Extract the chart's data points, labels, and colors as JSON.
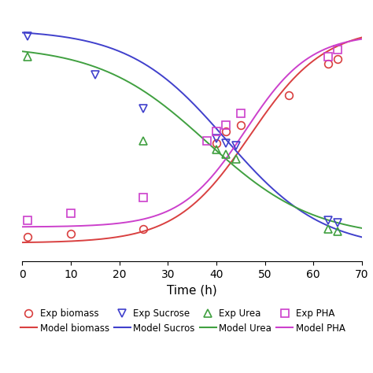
{
  "xlabel": "Time (h)",
  "xlim": [
    0,
    70
  ],
  "xticks": [
    0,
    10,
    20,
    30,
    40,
    50,
    60,
    70
  ],
  "biomass_exp_x": [
    1,
    10,
    25,
    40,
    42,
    45,
    55,
    63,
    65
  ],
  "biomass_exp_y": [
    0.055,
    0.07,
    0.09,
    0.47,
    0.52,
    0.55,
    0.68,
    0.82,
    0.84
  ],
  "sucrose_exp_x": [
    1,
    15,
    25,
    40,
    42,
    44,
    63,
    65
  ],
  "sucrose_exp_y": [
    0.94,
    0.77,
    0.62,
    0.49,
    0.47,
    0.46,
    0.13,
    0.12
  ],
  "urea_exp_x": [
    1,
    25,
    40,
    42,
    44,
    63,
    65
  ],
  "urea_exp_y": [
    0.85,
    0.48,
    0.44,
    0.42,
    0.4,
    0.09,
    0.08
  ],
  "pha_exp_x": [
    1,
    10,
    25,
    38,
    40,
    42,
    45,
    63,
    65
  ],
  "pha_exp_y": [
    0.13,
    0.16,
    0.23,
    0.48,
    0.52,
    0.55,
    0.6,
    0.85,
    0.88
  ],
  "model_biomass_color": "#d94040",
  "model_sucrose_color": "#4040cc",
  "model_urea_color": "#40a040",
  "model_pha_color": "#cc40cc",
  "exp_biomass_color": "#d94040",
  "exp_sucrose_color": "#4040cc",
  "exp_urea_color": "#40a040",
  "exp_pha_color": "#cc40cc",
  "background_color": "#ffffff",
  "legend_row1": [
    "Exp biomass",
    "Model biomass",
    "Exp Sucrose",
    "Model Sucros"
  ],
  "legend_row2": [
    "Exp Urea",
    "Model Urea",
    "Exp PHA",
    "Model PHA"
  ]
}
